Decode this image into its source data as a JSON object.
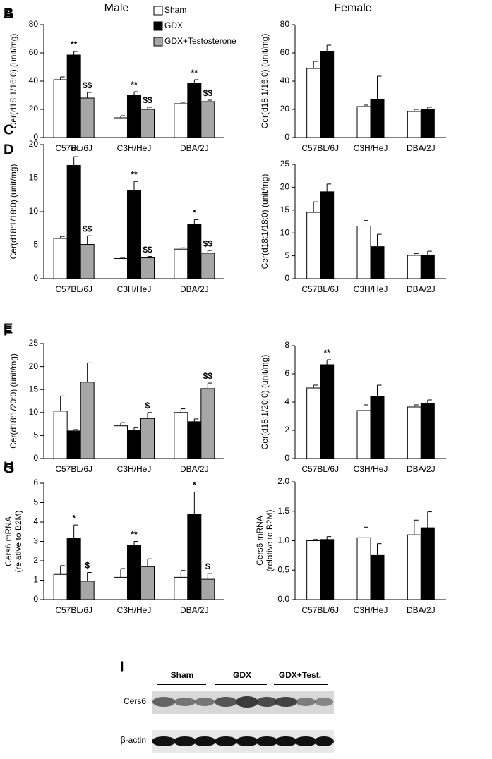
{
  "chart_data": [
    {
      "type": "bar",
      "panel": "A",
      "title": "Male",
      "ylabel": [
        "Cer(d18:1/16:0) (unit/mg)"
      ],
      "categories": [
        "C57BL/6J",
        "C3H/HeJ",
        "DBA/2J"
      ],
      "ylim": [
        0,
        80
      ],
      "yticks": [
        0,
        20,
        40,
        60,
        80
      ],
      "legend": "top-right",
      "series": [
        {
          "name": "Sham",
          "color": "#ffffff",
          "values": [
            41,
            14,
            24
          ],
          "errors": [
            2,
            1.5,
            1
          ],
          "labels": [
            null,
            null,
            null
          ]
        },
        {
          "name": "GDX",
          "color": "#000000",
          "values": [
            58.5,
            30,
            38.5
          ],
          "errors": [
            2.5,
            2.5,
            2.5
          ],
          "labels": [
            "**",
            "**",
            "**"
          ]
        },
        {
          "name": "GDX+Testosterone",
          "color": "#a6a6a6",
          "values": [
            28,
            20,
            25.5
          ],
          "errors": [
            4,
            1.5,
            1
          ],
          "labels": [
            "$$",
            "$$",
            "$$"
          ]
        }
      ]
    },
    {
      "type": "bar",
      "panel": "B",
      "title": "Female",
      "ylabel": [
        "Cer(d18:1/16:0) (unit/mg)"
      ],
      "categories": [
        "C57BL/6J",
        "C3H/HeJ",
        "DBA/2J"
      ],
      "ylim": [
        0,
        80
      ],
      "yticks": [
        0,
        20,
        40,
        60,
        80
      ],
      "series": [
        {
          "color": "#ffffff",
          "values": [
            49,
            22,
            18.5
          ],
          "errors": [
            5,
            1,
            1.5
          ]
        },
        {
          "color": "#000000",
          "values": [
            61,
            27,
            20
          ],
          "errors": [
            4.5,
            16.5,
            1.5
          ]
        }
      ]
    },
    {
      "type": "bar",
      "panel": "C",
      "ylabel": [
        "Cer(d18:1/18:0) (unit/mg)"
      ],
      "categories": [
        "C57BL/6J",
        "C3H/HeJ",
        "DBA/2J"
      ],
      "ylim": [
        0,
        20
      ],
      "yticks": [
        0,
        5,
        10,
        15,
        20
      ],
      "series": [
        {
          "color": "#ffffff",
          "values": [
            6,
            3,
            4.4
          ],
          "errors": [
            0.3,
            0.15,
            0.2
          ]
        },
        {
          "color": "#000000",
          "values": [
            16.9,
            13.2,
            8.1
          ],
          "errors": [
            1.3,
            1.3,
            0.7
          ],
          "labels": [
            "**",
            "**",
            "*"
          ]
        },
        {
          "color": "#a6a6a6",
          "values": [
            5.1,
            3.1,
            3.8
          ],
          "errors": [
            1.3,
            0.2,
            0.4
          ],
          "labels": [
            "$$",
            "$$",
            "$$"
          ]
        }
      ]
    },
    {
      "type": "bar",
      "panel": "D",
      "ylabel": [
        "Cer(d18:1/18:0) (unit/mg)"
      ],
      "categories": [
        "C57BL/6J",
        "C3H/HeJ",
        "DBA/2J"
      ],
      "ylim": [
        0,
        25
      ],
      "yticks": [
        0,
        5,
        10,
        15,
        20,
        25
      ],
      "series": [
        {
          "color": "#ffffff",
          "values": [
            14.5,
            11.5,
            5.1
          ],
          "errors": [
            2.3,
            1.2,
            0.4
          ]
        },
        {
          "color": "#000000",
          "values": [
            19,
            7,
            5.1
          ],
          "errors": [
            1.7,
            2.7,
            0.9
          ]
        }
      ]
    },
    {
      "type": "bar",
      "panel": "E",
      "ylabel": [
        "Cer(d18:1/20:0) (unit/mg)"
      ],
      "categories": [
        "C57BL/6J",
        "C3H/HeJ",
        "DBA/2J"
      ],
      "ylim": [
        0,
        25
      ],
      "yticks": [
        0,
        5,
        10,
        15,
        20,
        25
      ],
      "series": [
        {
          "color": "#ffffff",
          "values": [
            10.3,
            7.1,
            10
          ],
          "errors": [
            3.3,
            0.7,
            0.8
          ]
        },
        {
          "color": "#000000",
          "values": [
            6,
            6.1,
            8
          ],
          "errors": [
            0.3,
            0.6,
            0.6
          ]
        },
        {
          "color": "#a6a6a6",
          "values": [
            16.6,
            8.7,
            15.2
          ],
          "errors": [
            4.2,
            1.3,
            1.2
          ],
          "labels": [
            null,
            "$",
            "$$"
          ]
        }
      ]
    },
    {
      "type": "bar",
      "panel": "F",
      "ylabel": [
        "Cer(d18:1/20:0) (unit/mg)"
      ],
      "categories": [
        "C57BL/6J",
        "C3H/HeJ",
        "DBA/2J"
      ],
      "ylim": [
        0,
        8
      ],
      "yticks": [
        0,
        2,
        4,
        6,
        8
      ],
      "series": [
        {
          "color": "#ffffff",
          "values": [
            5,
            3.4,
            3.65
          ],
          "errors": [
            0.2,
            0.4,
            0.15
          ]
        },
        {
          "color": "#000000",
          "values": [
            6.65,
            4.4,
            3.9
          ],
          "errors": [
            0.35,
            0.8,
            0.25
          ],
          "labels": [
            "**",
            null,
            null
          ]
        }
      ]
    },
    {
      "type": "bar",
      "panel": "G",
      "ylabel": [
        "Cers6 mRNA",
        "(relative to B2M)"
      ],
      "categories": [
        "C57BL/6J",
        "C3H/HeJ",
        "DBA/2J"
      ],
      "ylim": [
        0,
        6
      ],
      "yticks": [
        0,
        1,
        2,
        3,
        4,
        5,
        6
      ],
      "series": [
        {
          "color": "#ffffff",
          "values": [
            1.3,
            1.15,
            1.15
          ],
          "errors": [
            0.45,
            0.45,
            0.35
          ]
        },
        {
          "color": "#000000",
          "values": [
            3.15,
            2.8,
            4.4
          ],
          "errors": [
            0.7,
            0.2,
            1.15
          ],
          "labels": [
            "*",
            "**",
            "*"
          ]
        },
        {
          "color": "#a6a6a6",
          "values": [
            0.95,
            1.7,
            1.05
          ],
          "errors": [
            0.45,
            0.4,
            0.3
          ],
          "labels": [
            "$",
            null,
            "$"
          ]
        }
      ]
    },
    {
      "type": "bar",
      "panel": "H",
      "ylabel": [
        "Cers6 mRNA",
        "(relative to B2M)"
      ],
      "categories": [
        "C57BL/6J",
        "C3H/HeJ",
        "DBA/2J"
      ],
      "ylim": [
        0,
        2
      ],
      "yticks": [
        {
          "value": 0,
          "label": "0.0"
        },
        {
          "value": 0.5,
          "label": "0.5"
        },
        {
          "value": 1,
          "label": "1.0"
        },
        {
          "value": 1.5,
          "label": "1.5"
        },
        {
          "value": 2,
          "label": "2.0"
        }
      ],
      "series": [
        {
          "color": "#ffffff",
          "values": [
            1.0,
            1.05,
            1.1
          ],
          "errors": [
            0.02,
            0.18,
            0.25
          ]
        },
        {
          "color": "#000000",
          "values": [
            1.02,
            0.75,
            1.22
          ],
          "errors": [
            0.05,
            0.2,
            0.27
          ]
        }
      ]
    }
  ],
  "blot": {
    "panel": "I",
    "groups": [
      "Sham",
      "GDX",
      "GDX+Test."
    ],
    "rows": [
      "Cers6",
      "β-actin"
    ]
  }
}
